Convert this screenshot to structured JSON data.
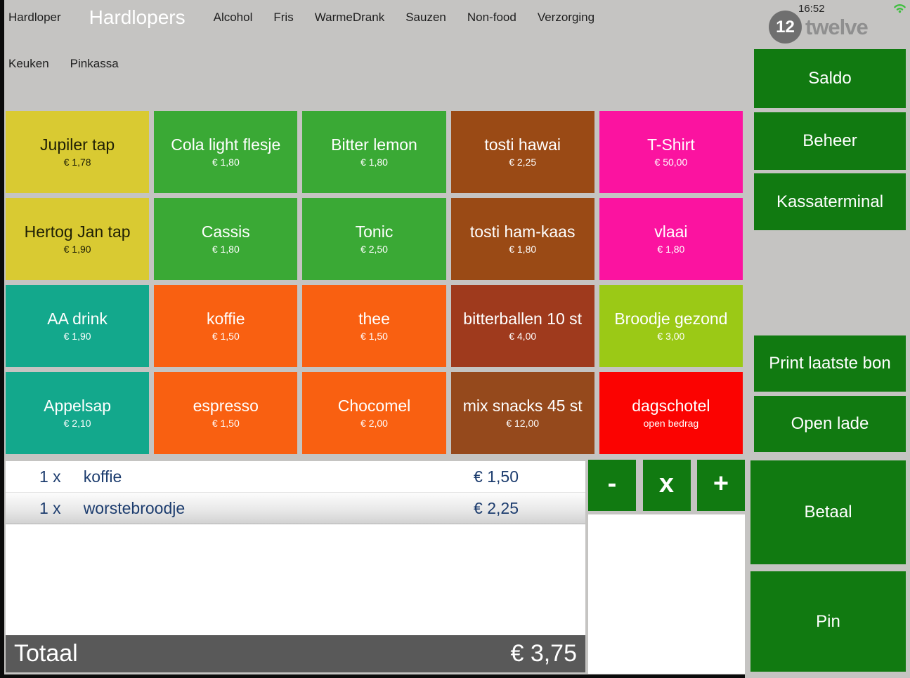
{
  "theme": {
    "background": "#c5c4c2",
    "button_green": "#117a11",
    "total_bar_gray": "#595959",
    "receipt_text_blue": "#1c3c6e",
    "wifi_green": "#3fbf3f",
    "logo_gray": "#6f6f6f"
  },
  "header": {
    "tabs_row1": [
      {
        "label": "Hardloper",
        "selected": false
      },
      {
        "label": "Hardlopers",
        "selected": true
      },
      {
        "label": "Alcohol",
        "selected": false
      },
      {
        "label": "Fris",
        "selected": false
      },
      {
        "label": "WarmeDrank",
        "selected": false
      },
      {
        "label": "Sauzen",
        "selected": false
      },
      {
        "label": "Non-food",
        "selected": false
      },
      {
        "label": "Verzorging",
        "selected": false
      }
    ],
    "tabs_row2": [
      {
        "label": "Keuken",
        "selected": false
      },
      {
        "label": "Pinkassa",
        "selected": false
      }
    ],
    "time": "16:52",
    "logo": {
      "badge": "12",
      "text": "twelve"
    },
    "wifi_icon": "wifi-icon"
  },
  "products": [
    {
      "name": "Jupiler tap",
      "price": "€ 1,78",
      "bg": "#d9ca32",
      "fg": "#1f1f05"
    },
    {
      "name": "Cola light flesje",
      "price": "€ 1,80",
      "bg": "#3aa935",
      "fg": "#ffffff"
    },
    {
      "name": "Bitter lemon",
      "price": "€ 1,80",
      "bg": "#3aa935",
      "fg": "#ffffff"
    },
    {
      "name": "tosti hawai",
      "price": "€ 2,25",
      "bg": "#9a4a15",
      "fg": "#ffffff"
    },
    {
      "name": "T-Shirt",
      "price": "€ 50,00",
      "bg": "#fb13a0",
      "fg": "#ffffff"
    },
    {
      "name": "Hertog Jan tap",
      "price": "€ 1,90",
      "bg": "#d9ca32",
      "fg": "#1f1f05"
    },
    {
      "name": "Cassis",
      "price": "€ 1,80",
      "bg": "#3aa935",
      "fg": "#ffffff"
    },
    {
      "name": "Tonic",
      "price": "€ 2,50",
      "bg": "#3aa935",
      "fg": "#ffffff"
    },
    {
      "name": "tosti ham-kaas",
      "price": "€ 1,80",
      "bg": "#9a4a15",
      "fg": "#ffffff"
    },
    {
      "name": "vlaai",
      "price": "€ 1,80",
      "bg": "#fb13a0",
      "fg": "#ffffff"
    },
    {
      "name": "AA drink",
      "price": "€ 1,90",
      "bg": "#13a88c",
      "fg": "#ffffff"
    },
    {
      "name": "koffie",
      "price": "€ 1,50",
      "bg": "#f96011",
      "fg": "#ffffff"
    },
    {
      "name": "thee",
      "price": "€ 1,50",
      "bg": "#f96011",
      "fg": "#ffffff"
    },
    {
      "name": "bitterballen 10 st",
      "price": "€ 4,00",
      "bg": "#9f3a1d",
      "fg": "#ffffff"
    },
    {
      "name": "Broodje gezond",
      "price": "€ 3,00",
      "bg": "#9bc916",
      "fg": "#ffffff"
    },
    {
      "name": "Appelsap",
      "price": "€ 2,10",
      "bg": "#13a88c",
      "fg": "#ffffff"
    },
    {
      "name": "espresso",
      "price": "€ 1,50",
      "bg": "#f96011",
      "fg": "#ffffff"
    },
    {
      "name": "Chocomel",
      "price": "€ 2,00",
      "bg": "#f96011",
      "fg": "#ffffff"
    },
    {
      "name": "mix snacks 45 st",
      "price": "€ 12,00",
      "bg": "#95491c",
      "fg": "#ffffff"
    },
    {
      "name": "dagschotel",
      "price": "open bedrag",
      "bg": "#fb0301",
      "fg": "#ffffff"
    }
  ],
  "sidebar": {
    "buttons": [
      {
        "id": "saldo",
        "label": "Saldo"
      },
      {
        "id": "beheer",
        "label": "Beheer"
      },
      {
        "id": "kassaterminal",
        "label": "Kassaterminal"
      },
      {
        "id": "print-laatste-bon",
        "label": "Print laatste bon"
      },
      {
        "id": "open-lade",
        "label": "Open lade"
      },
      {
        "id": "betaal",
        "label": "Betaal"
      },
      {
        "id": "pin",
        "label": "Pin"
      }
    ]
  },
  "quantity_controls": [
    {
      "id": "decrease",
      "label": "-"
    },
    {
      "id": "multiply",
      "label": "x"
    },
    {
      "id": "increase",
      "label": "+"
    }
  ],
  "receipt": {
    "items": [
      {
        "qty": "1 x",
        "name": "koffie",
        "price": "€ 1,50",
        "selected": false
      },
      {
        "qty": "1 x",
        "name": "worstebroodje",
        "price": "€ 2,25",
        "selected": true
      }
    ],
    "total_label": "Totaal",
    "total_value": "€ 3,75"
  }
}
